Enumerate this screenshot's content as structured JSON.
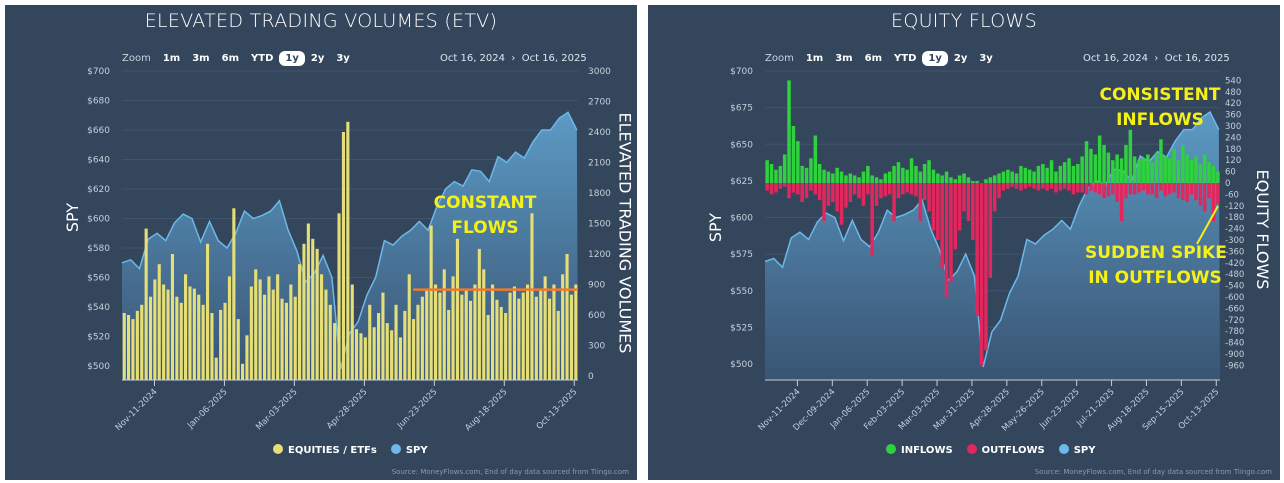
{
  "colors": {
    "panel_bg": "#34465c",
    "spy_line": "#6cb8ea",
    "spy_fill_top": "#5e9fca",
    "spy_fill_bottom": "#3a5676",
    "volume_bar": "#e6df78",
    "inflow": "#2fd13f",
    "outflow": "#e2275e",
    "annotation": "#f4f018",
    "constant_line": "#f07a2a"
  },
  "zoom_buttons": {
    "label": "Zoom",
    "options": [
      "1m",
      "3m",
      "6m",
      "YTD",
      "1y",
      "2y",
      "3y"
    ],
    "selected": "1y"
  },
  "date_range": {
    "from": "Oct 16, 2024",
    "separator": "›",
    "to": "Oct 16, 2025"
  },
  "source": "Source: MoneyFlows.com, End of day data sourced from Tiingo.com",
  "chart_data": [
    {
      "type": "bar+area",
      "title": "ELEVATED TRADING VOLUMES (ETV)",
      "ylabel": "SPY",
      "y2label": "ELEVATED TRADING VOLUMES",
      "ylim": [
        490,
        700
      ],
      "yticks": [
        "$700",
        "$680",
        "$660",
        "$640",
        "$620",
        "$600",
        "$580",
        "$560",
        "$540",
        "$520",
        "$500"
      ],
      "y2lim": [
        0,
        3000
      ],
      "y2ticks": [
        "3000",
        "2700",
        "2400",
        "2100",
        "1800",
        "1500",
        "1200",
        "900",
        "600",
        "300",
        "0"
      ],
      "xlim": [
        "2024-10-16",
        "2025-10-16"
      ],
      "xticks": [
        "Nov-11-2024",
        "Jan-06-2025",
        "Mar-03-2025",
        "Apr-28-2025",
        "Jun-23-2025",
        "Aug-18-2025",
        "Oct-13-2025"
      ],
      "legend": [
        "EQUITIES / ETFs",
        "SPY"
      ],
      "legend_position": "bottom",
      "annotations": {
        "text_line1": "CONSTANT",
        "text_line2": "FLOWS",
        "reference_level": 850,
        "reference_from": "2025-06-06",
        "reference_to": "2025-10-16"
      },
      "volume_values": [
        620,
        600,
        560,
        640,
        700,
        1450,
        780,
        950,
        1100,
        900,
        850,
        1200,
        780,
        720,
        1000,
        880,
        860,
        800,
        700,
        1300,
        620,
        180,
        650,
        720,
        980,
        1650,
        560,
        120,
        400,
        880,
        1050,
        950,
        800,
        980,
        850,
        1000,
        760,
        720,
        900,
        780,
        1100,
        1300,
        1500,
        1350,
        1250,
        1000,
        850,
        700,
        520,
        1600,
        2400,
        2500,
        900,
        460,
        420,
        380,
        700,
        480,
        620,
        820,
        520,
        450,
        700,
        380,
        640,
        1000,
        560,
        700,
        780,
        850,
        1480,
        900,
        820,
        1050,
        650,
        980,
        1350,
        800,
        860,
        740,
        900,
        1250,
        1050,
        600,
        900,
        750,
        680,
        620,
        820,
        880,
        760,
        820,
        900,
        1600,
        780,
        860,
        980,
        760,
        900,
        640,
        1000,
        1200,
        800,
        900
      ]
    },
    {
      "type": "bar+area",
      "title": "EQUITY FLOWS",
      "ylabel": "SPY",
      "y2label": "EQUITY FLOWS",
      "ylim": [
        490,
        700
      ],
      "yticks": [
        "$700",
        "$675",
        "$650",
        "$625",
        "$600",
        "$575",
        "$550",
        "$525",
        "$500"
      ],
      "y2ticks": [
        "540",
        "480",
        "420",
        "360",
        "300",
        "240",
        "180",
        "120",
        "60",
        "0",
        "-60",
        "-120",
        "-180",
        "-240",
        "-300",
        "-360",
        "-420",
        "-480",
        "-540",
        "-600",
        "-660",
        "-720",
        "-780",
        "-840",
        "-900",
        "-960"
      ],
      "xlim": [
        "2024-10-16",
        "2025-10-16"
      ],
      "xticks": [
        "Nov-11-2024",
        "Dec-09-2024",
        "Jan-06-2025",
        "Feb-03-2025",
        "Mar-03-2025",
        "Mar-31-2025",
        "Apr-28-2025",
        "May-26-2025",
        "Jun-23-2025",
        "Jul-21-2025",
        "Aug-18-2025",
        "Sep-15-2025",
        "Oct-13-2025"
      ],
      "legend": [
        "INFLOWS",
        "OUTFLOWS",
        "SPY"
      ],
      "legend_position": "bottom",
      "annotations": {
        "top_line1": "CONSISTENT",
        "top_line2": "INFLOWS",
        "bottom_line1": "SUDDEN SPIKE",
        "bottom_line2": "IN OUTFLOWS"
      },
      "inflows": [
        120,
        100,
        70,
        90,
        150,
        540,
        300,
        220,
        90,
        80,
        130,
        250,
        100,
        70,
        60,
        50,
        80,
        60,
        40,
        50,
        40,
        30,
        60,
        90,
        40,
        30,
        20,
        50,
        60,
        90,
        110,
        80,
        70,
        130,
        90,
        60,
        100,
        120,
        70,
        50,
        40,
        60,
        30,
        20,
        40,
        50,
        30,
        10,
        10,
        0,
        20,
        30,
        40,
        50,
        60,
        70,
        60,
        50,
        90,
        80,
        70,
        60,
        90,
        100,
        80,
        120,
        60,
        90,
        110,
        130,
        90,
        100,
        140,
        220,
        180,
        150,
        250,
        200,
        160,
        120,
        150,
        130,
        200,
        280,
        140,
        120,
        130,
        150,
        110,
        160,
        230,
        140,
        130,
        180,
        120,
        200,
        150,
        120,
        140,
        100,
        150,
        110,
        90,
        60
      ],
      "outflows": [
        -40,
        -60,
        -50,
        -30,
        -20,
        -80,
        -50,
        -60,
        -100,
        -80,
        -40,
        -60,
        -90,
        -200,
        -120,
        -100,
        -150,
        -220,
        -130,
        -100,
        -60,
        -80,
        -120,
        -60,
        -380,
        -120,
        -80,
        -70,
        -60,
        -200,
        -80,
        -60,
        -50,
        -60,
        -70,
        -200,
        -90,
        -150,
        -250,
        -300,
        -450,
        -600,
        -520,
        -350,
        -250,
        -150,
        -200,
        -300,
        -700,
        -960,
        -880,
        -500,
        -150,
        -80,
        -40,
        -30,
        -20,
        -30,
        -40,
        -30,
        -20,
        -30,
        -40,
        -30,
        -40,
        -30,
        -50,
        -40,
        -30,
        -40,
        -60,
        -50,
        -50,
        -60,
        -40,
        -50,
        -60,
        -80,
        -70,
        -60,
        -100,
        -200,
        -80,
        -60,
        -60,
        -50,
        -40,
        -60,
        -60,
        -80,
        -40,
        -70,
        -60,
        -50,
        -80,
        -90,
        -100,
        -60,
        -90,
        -120,
        -150,
        -80,
        -200,
        -110
      ]
    }
  ],
  "spy_weekly": {
    "dates": [
      "2024-10-16",
      "2024-10-23",
      "2024-10-30",
      "2024-11-06",
      "2024-11-13",
      "2024-11-20",
      "2024-11-27",
      "2024-12-04",
      "2024-12-11",
      "2024-12-18",
      "2024-12-25",
      "2025-01-01",
      "2025-01-08",
      "2025-01-15",
      "2025-01-22",
      "2025-01-29",
      "2025-02-05",
      "2025-02-12",
      "2025-02-19",
      "2025-02-26",
      "2025-03-05",
      "2025-03-12",
      "2025-03-19",
      "2025-03-26",
      "2025-04-02",
      "2025-04-09",
      "2025-04-16",
      "2025-04-23",
      "2025-04-30",
      "2025-05-07",
      "2025-05-14",
      "2025-05-21",
      "2025-05-28",
      "2025-06-04",
      "2025-06-11",
      "2025-06-18",
      "2025-06-25",
      "2025-07-02",
      "2025-07-09",
      "2025-07-16",
      "2025-07-23",
      "2025-07-30",
      "2025-08-06",
      "2025-08-13",
      "2025-08-20",
      "2025-08-27",
      "2025-09-03",
      "2025-09-10",
      "2025-09-17",
      "2025-09-24",
      "2025-10-01",
      "2025-10-08",
      "2025-10-15"
    ],
    "values": [
      570,
      572,
      566,
      586,
      590,
      585,
      597,
      603,
      600,
      584,
      598,
      585,
      580,
      590,
      605,
      600,
      602,
      605,
      612,
      592,
      578,
      557,
      563,
      575,
      560,
      498,
      522,
      530,
      548,
      560,
      585,
      582,
      588,
      592,
      598,
      592,
      608,
      620,
      625,
      622,
      633,
      632,
      625,
      642,
      638,
      645,
      641,
      652,
      660,
      660,
      668,
      672,
      660
    ]
  }
}
